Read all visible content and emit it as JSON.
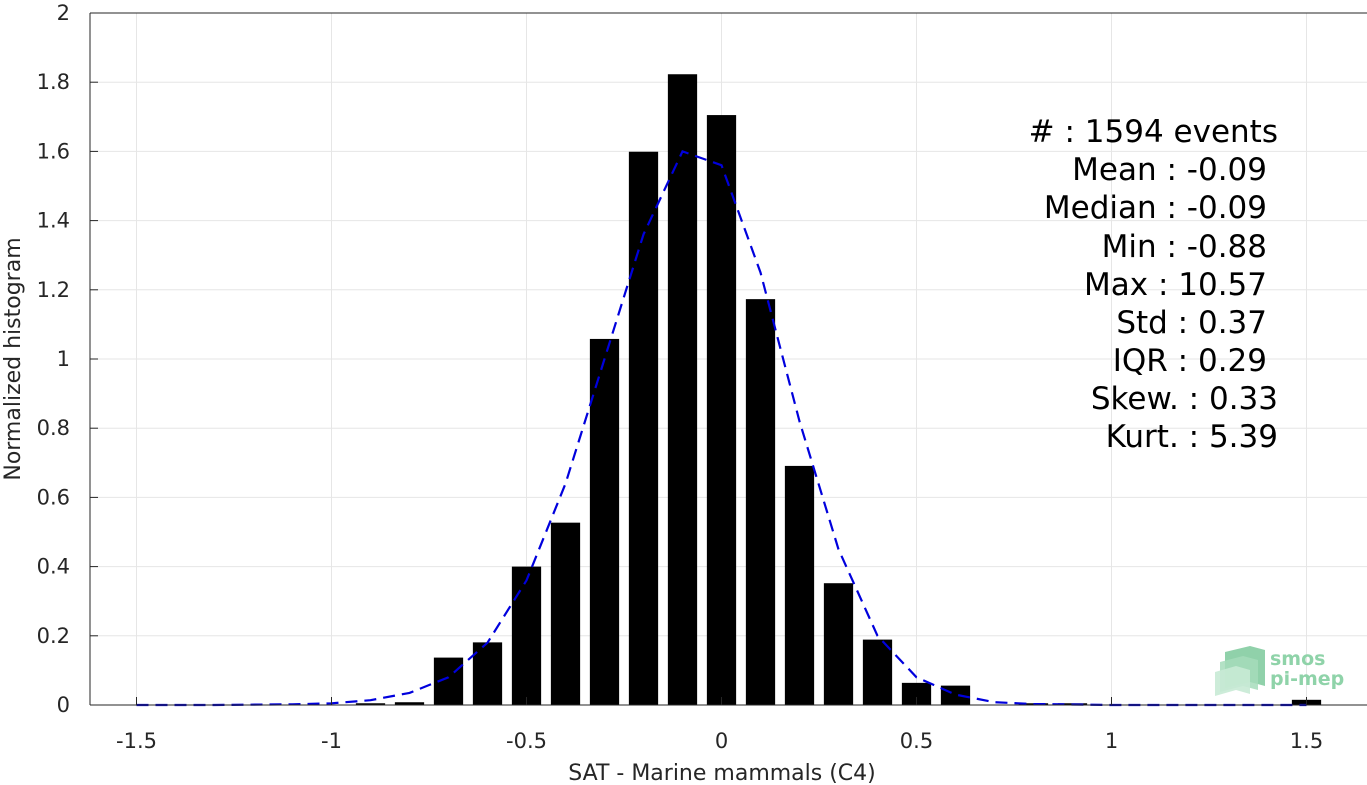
{
  "chart_data": {
    "type": "bar",
    "xlabel": "SAT - Marine mammals (C4)",
    "ylabel": "Normalized histogram",
    "xlim": [
      -1.6,
      1.6
    ],
    "ylim": [
      0,
      2
    ],
    "grid": true,
    "x_ticks": [
      "-1.5",
      "-1",
      "-0.5",
      "0",
      "0.5",
      "1",
      "1.5"
    ],
    "y_ticks": [
      "0",
      "0.2",
      "0.4",
      "0.6",
      "0.8",
      "1",
      "1.2",
      "1.4",
      "1.6",
      "1.8",
      "2"
    ],
    "bar_width": 0.075,
    "histogram": {
      "color": "#000000",
      "x": [
        -0.9,
        -0.8,
        -0.7,
        -0.6,
        -0.5,
        -0.4,
        -0.3,
        -0.2,
        -0.1,
        0.0,
        0.1,
        0.2,
        0.3,
        0.4,
        0.5,
        0.6,
        0.8,
        0.9,
        1.5
      ],
      "values": [
        0.005,
        0.008,
        0.137,
        0.181,
        0.4,
        0.527,
        1.058,
        1.599,
        1.823,
        1.705,
        1.173,
        0.691,
        0.352,
        0.189,
        0.064,
        0.056,
        0.005,
        0.005,
        0.015
      ]
    },
    "fit_curve": {
      "color": "#0000dd",
      "style": "dashed",
      "x": [
        -1.5,
        -1.3,
        -1.1,
        -1.0,
        -0.9,
        -0.8,
        -0.7,
        -0.6,
        -0.5,
        -0.4,
        -0.3,
        -0.2,
        -0.1,
        0.0,
        0.1,
        0.2,
        0.3,
        0.4,
        0.5,
        0.6,
        0.7,
        0.8,
        1.0,
        1.2,
        1.5
      ],
      "values": [
        0,
        0,
        0.002,
        0.005,
        0.014,
        0.035,
        0.08,
        0.18,
        0.36,
        0.64,
        1.0,
        1.36,
        1.6,
        1.56,
        1.25,
        0.82,
        0.45,
        0.2,
        0.08,
        0.03,
        0.008,
        0.003,
        0,
        0,
        0
      ]
    },
    "annotations": [
      "#  : 1594 events",
      "Mean : -0.09",
      "Median : -0.09",
      "Min : -0.88",
      "Max : 10.57",
      "Std : 0.37",
      "IQR : 0.29",
      "Skew. : 0.33",
      "Kurt. : 5.39"
    ]
  },
  "logo": {
    "line1": "smos",
    "line2": "pi-mep",
    "color": "#8fd3a9"
  }
}
